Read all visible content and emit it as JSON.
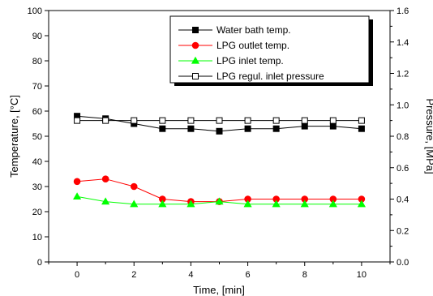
{
  "chart_data": {
    "type": "line",
    "xlabel": "Time, [min]",
    "ylabel_left": "Temperature, [",
    "ylabel_left_unit": "°C]",
    "ylabel_right": "Pressure, [MPa]",
    "xlim": [
      -1,
      11
    ],
    "ylim_left": [
      0,
      100
    ],
    "ylim_right": [
      0.0,
      1.6
    ],
    "x_ticks": [
      "0",
      "2",
      "4",
      "6",
      "8",
      "10"
    ],
    "y_left_ticks": [
      "0",
      "10",
      "20",
      "30",
      "40",
      "50",
      "60",
      "70",
      "80",
      "90",
      "100"
    ],
    "y_right_ticks": [
      "0.0",
      "0.2",
      "0.4",
      "0.6",
      "0.8",
      "1.0",
      "1.2",
      "1.4",
      "1.6"
    ],
    "grid": false,
    "legend_position": "top-right",
    "x": [
      0,
      1,
      2,
      3,
      4,
      5,
      6,
      7,
      8,
      9,
      10
    ],
    "series": [
      {
        "name": "Water bath temp.",
        "axis": "left",
        "color": "#000000",
        "marker": "square-filled",
        "values": [
          58,
          57,
          55,
          53,
          53,
          52,
          53,
          53,
          54,
          54,
          53
        ]
      },
      {
        "name": "LPG outlet temp.",
        "axis": "left",
        "color": "#ff0000",
        "marker": "circle-filled",
        "values": [
          32,
          33,
          30,
          25,
          24,
          24,
          25,
          25,
          25,
          25,
          25
        ]
      },
      {
        "name": "LPG inlet temp.",
        "axis": "left",
        "color": "#00ff00",
        "marker": "triangle-filled",
        "values": [
          26,
          24,
          23,
          23,
          23,
          24,
          23,
          23,
          23,
          23,
          23
        ]
      },
      {
        "name": "LPG regul. inlet pressure",
        "axis": "right",
        "color": "#000000",
        "marker": "square-open",
        "values": [
          0.9,
          0.9,
          0.9,
          0.9,
          0.9,
          0.9,
          0.9,
          0.9,
          0.9,
          0.9,
          0.9
        ]
      }
    ]
  }
}
